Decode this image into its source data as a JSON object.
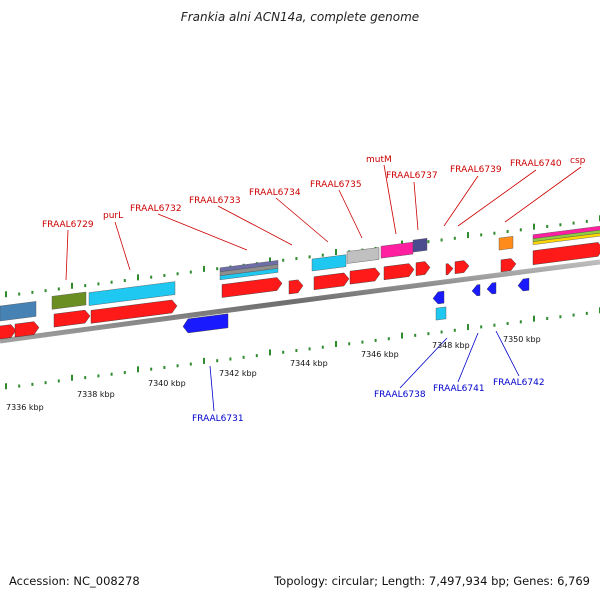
{
  "title": "Frankia alni ACN14a, complete genome",
  "footer": {
    "accession": "Accession: NC_008278",
    "summary": "Topology: circular; Length: 7,497,934 bp; Genes: 6,769"
  },
  "colors": {
    "backbone": "#7a7a7a",
    "tick": "#2e8b2e",
    "forward_label": "#cc0000",
    "reverse_label": "#0000cc",
    "cds_forward": "#ff1a1a",
    "cds_reverse": "#1a1aff"
  },
  "axis_labels": [
    "7336 kbp",
    "7338 kbp",
    "7340 kbp",
    "7342 kbp",
    "7344 kbp",
    "7346 kbp",
    "7348 kbp",
    "7350 kbp"
  ],
  "forward_gene_labels": [
    "FRAAL6729",
    "purL",
    "FRAAL6732",
    "FRAAL6733",
    "FRAAL6734",
    "FRAAL6735",
    "mutM",
    "FRAAL6737",
    "FRAAL6739",
    "FRAAL6740",
    "csp"
  ],
  "reverse_gene_labels": [
    "FRAAL6731",
    "FRAAL6738",
    "FRAAL6741",
    "FRAAL6742"
  ]
}
